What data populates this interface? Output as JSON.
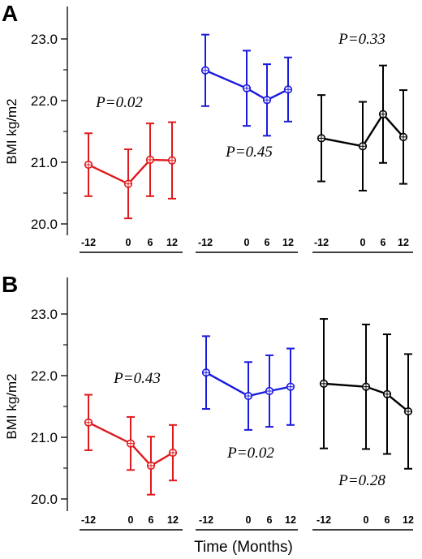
{
  "figure": {
    "xlabel": "Time (Months)"
  },
  "chart_data": [
    {
      "type": "line",
      "panel_label": "A",
      "ylabel": "BMI kg/m2",
      "ylim": [
        19.9,
        23.45
      ],
      "yticks": [
        "20.0",
        "21.0",
        "22.0",
        "23.0"
      ],
      "x": [
        -12,
        0,
        6,
        12
      ],
      "xtick_labels": [
        "-12",
        "0",
        "6",
        "12"
      ],
      "grid": false,
      "series": [
        {
          "color": "#e0191c",
          "values": [
            20.96,
            20.65,
            21.04,
            21.03
          ],
          "errors": [
            0.51,
            0.56,
            0.59,
            0.62
          ],
          "annotation": "P=0.02"
        },
        {
          "color": "#1a1adf",
          "values": [
            22.49,
            22.2,
            22.01,
            22.18
          ],
          "errors": [
            0.58,
            0.61,
            0.58,
            0.52
          ],
          "annotation": "P=0.45"
        },
        {
          "color": "#000000",
          "values": [
            21.39,
            21.26,
            21.78,
            21.41
          ],
          "errors": [
            0.7,
            0.72,
            0.79,
            0.76
          ],
          "annotation": "P=0.33"
        }
      ]
    },
    {
      "type": "line",
      "panel_label": "B",
      "ylabel": "BMI kg/m2",
      "ylim": [
        19.9,
        23.45
      ],
      "yticks": [
        "20.0",
        "21.0",
        "22.0",
        "23.0"
      ],
      "x": [
        -12,
        0,
        6,
        12
      ],
      "xtick_labels": [
        "-12",
        "0",
        "6",
        "12"
      ],
      "grid": false,
      "series": [
        {
          "color": "#e0191c",
          "values": [
            21.24,
            20.9,
            20.54,
            20.75
          ],
          "errors": [
            0.45,
            0.43,
            0.47,
            0.45
          ],
          "annotation": "P=0.43"
        },
        {
          "color": "#1a1adf",
          "values": [
            22.05,
            21.67,
            21.75,
            21.82
          ],
          "errors": [
            0.59,
            0.55,
            0.58,
            0.62
          ],
          "annotation": "P=0.02"
        },
        {
          "color": "#000000",
          "values": [
            21.87,
            21.82,
            21.7,
            21.42
          ],
          "errors": [
            1.05,
            1.01,
            0.97,
            0.93
          ],
          "annotation": "P=0.28"
        }
      ]
    }
  ]
}
